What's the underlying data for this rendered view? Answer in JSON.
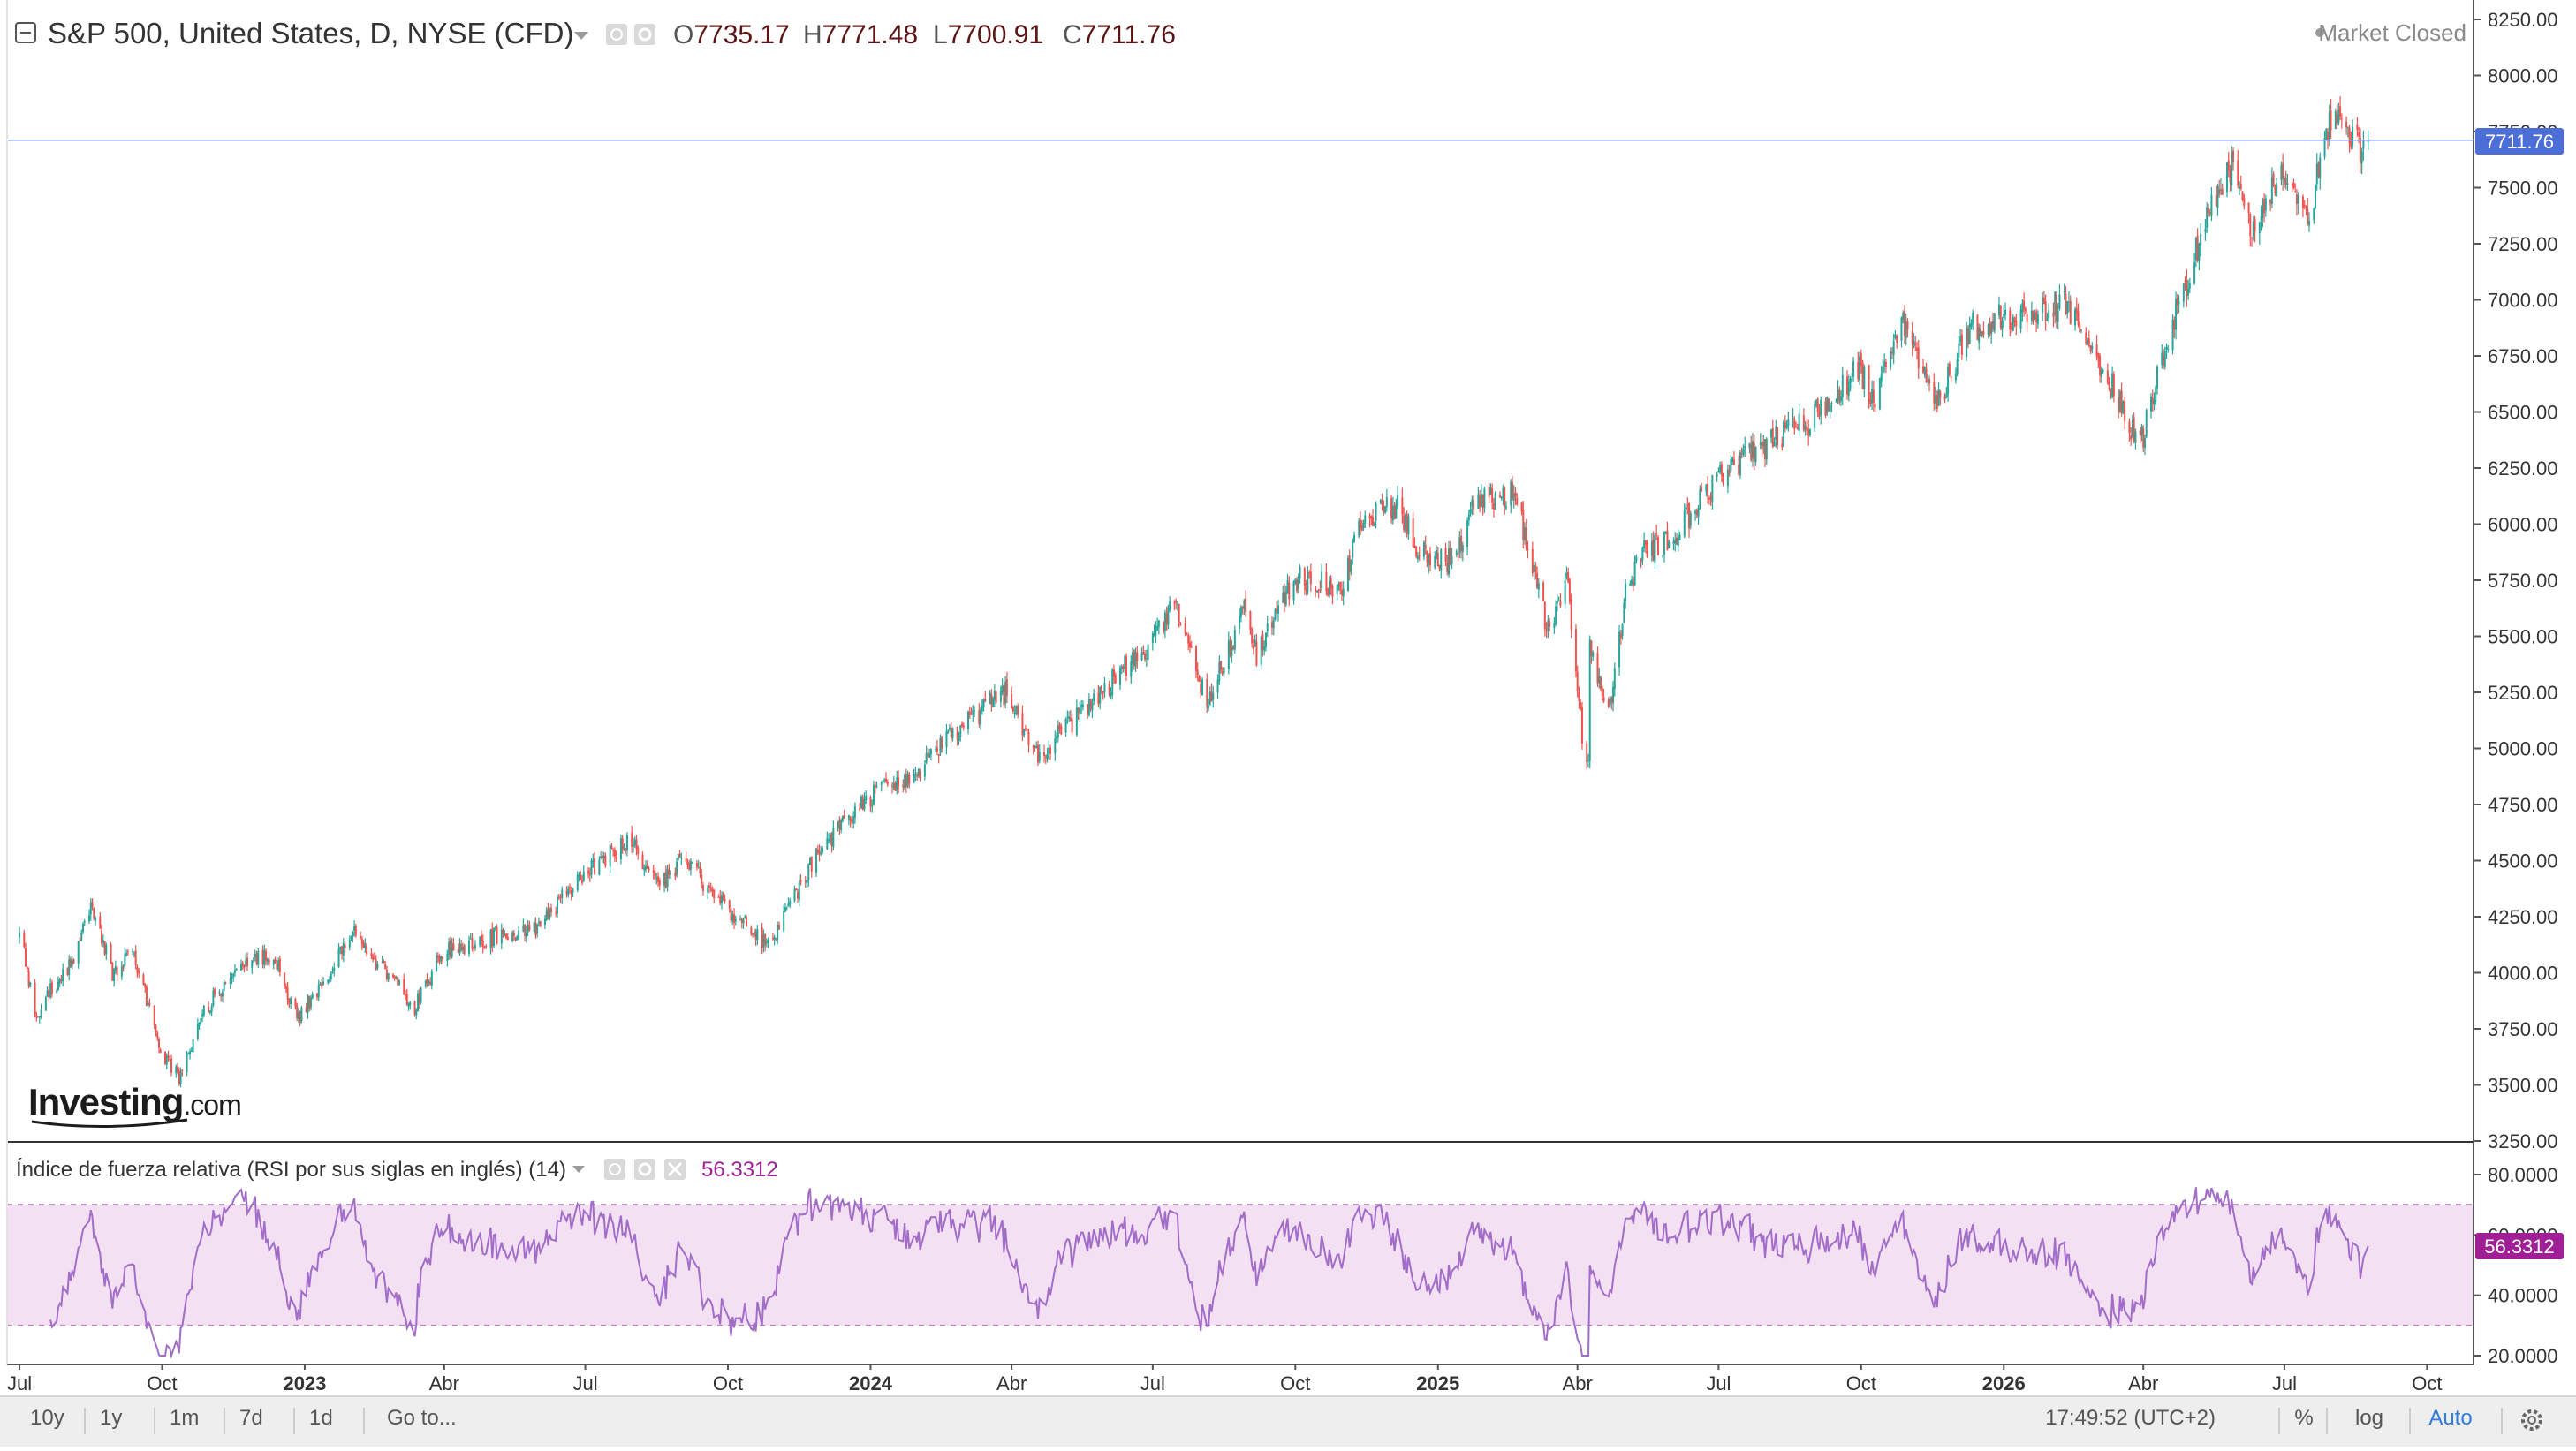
{
  "header": {
    "symbol_title": "S&P 500, United States, D, NYSE (CFD)",
    "ohlc": [
      {
        "key": "O",
        "value": "7735.17"
      },
      {
        "key": "H",
        "value": "7771.48"
      },
      {
        "key": "L",
        "value": "7700.91"
      },
      {
        "key": "C",
        "value": "7711.76"
      }
    ],
    "market_status": "Market Closed"
  },
  "watermark": {
    "brand": "Investing",
    "suffix": ".com"
  },
  "price_label": "7711.76",
  "indicator": {
    "title": "Índice de fuerza relativa (RSI por sus siglas en inglés) (14)",
    "value_label": "56.3312"
  },
  "toolbar": {
    "ranges": [
      "10y",
      "1y",
      "1m",
      "7d",
      "1d"
    ],
    "goto_label": "Go to...",
    "clock": "17:49:52 (UTC+2)",
    "percent_label": "%",
    "log_label": "log",
    "auto_label": "Auto"
  },
  "colors": {
    "up": "#26a69a",
    "down": "#ef5350",
    "rsi_line": "#a26cc9",
    "rsi_band": "#f3e1f3",
    "price_tag": "#4c6ed8",
    "rsi_tag": "#a01f96",
    "auto_active": "#2f7de0"
  },
  "chart_data": [
    {
      "type": "candlestick",
      "title": "S&P 500, United States, D, NYSE (CFD)",
      "x_axis_ticks": [
        "Jul",
        "Oct",
        "2023",
        "Abr",
        "Jul",
        "Oct",
        "2024",
        "Abr",
        "Jul",
        "Oct",
        "2025",
        "Abr",
        "Jul",
        "Oct",
        "2026",
        "Abr",
        "Jul",
        "Oct"
      ],
      "y_axis_ticks": [
        "8250.00",
        "8000.00",
        "7750.00",
        "7500.00",
        "7250.00",
        "7000.00",
        "6750.00",
        "6500.00",
        "6250.00",
        "6000.00",
        "5750.00",
        "5500.00",
        "5250.00",
        "5000.00",
        "4750.00",
        "4500.00",
        "4250.00",
        "4000.00",
        "3750.00",
        "3500.00",
        "3250.00"
      ],
      "ylim": [
        3250,
        8250
      ],
      "last_close": 7711.76,
      "series": [
        {
          "anchors": [
            [
              "2022-07-01",
              4150
            ],
            [
              "2022-07-05",
              4050
            ],
            [
              "2022-07-12",
              3780
            ],
            [
              "2022-07-22",
              3930
            ],
            [
              "2022-08-01",
              4000
            ],
            [
              "2022-08-16",
              4300
            ],
            [
              "2022-08-30",
              4000
            ],
            [
              "2022-09-12",
              4100
            ],
            [
              "2022-09-30",
              3650
            ],
            [
              "2022-10-13",
              3530
            ],
            [
              "2022-10-25",
              3800
            ],
            [
              "2022-11-10",
              3950
            ],
            [
              "2022-11-30",
              4080
            ],
            [
              "2022-12-13",
              4050
            ],
            [
              "2022-12-28",
              3800
            ],
            [
              "2023-01-12",
              3950
            ],
            [
              "2023-02-02",
              4180
            ],
            [
              "2023-02-22",
              4000
            ],
            [
              "2023-03-13",
              3850
            ],
            [
              "2023-03-31",
              4100
            ],
            [
              "2023-04-28",
              4150
            ],
            [
              "2023-05-31",
              4200
            ],
            [
              "2023-06-30",
              4450
            ],
            [
              "2023-07-31",
              4590
            ],
            [
              "2023-08-18",
              4370
            ],
            [
              "2023-09-01",
              4510
            ],
            [
              "2023-09-29",
              4300
            ],
            [
              "2023-10-27",
              4120
            ],
            [
              "2023-11-30",
              4560
            ],
            [
              "2023-12-29",
              4770
            ],
            [
              "2024-01-31",
              4900
            ],
            [
              "2024-02-29",
              5100
            ],
            [
              "2024-03-28",
              5250
            ],
            [
              "2024-04-19",
              4970
            ],
            [
              "2024-05-31",
              5270
            ],
            [
              "2024-06-28",
              5460
            ],
            [
              "2024-07-16",
              5650
            ],
            [
              "2024-08-05",
              5190
            ],
            [
              "2024-08-30",
              5640
            ],
            [
              "2024-09-06",
              5410
            ],
            [
              "2024-09-30",
              5760
            ],
            [
              "2024-10-31",
              5710
            ],
            [
              "2024-11-11",
              6000
            ],
            [
              "2024-12-06",
              6090
            ],
            [
              "2024-12-20",
              5870
            ],
            [
              "2025-01-13",
              5830
            ],
            [
              "2025-01-23",
              6100
            ],
            [
              "2025-02-19",
              6140
            ],
            [
              "2025-03-13",
              5520
            ],
            [
              "2025-03-25",
              5780
            ],
            [
              "2025-04-04",
              5070
            ],
            [
              "2025-04-08",
              4900
            ],
            [
              "2025-04-09",
              5450
            ],
            [
              "2025-04-21",
              5150
            ],
            [
              "2025-05-02",
              5690
            ],
            [
              "2025-05-13",
              5880
            ],
            [
              "2025-05-30",
              5920
            ],
            [
              "2025-06-30",
              6200
            ],
            [
              "2025-07-31",
              6350
            ],
            [
              "2025-08-29",
              6460
            ],
            [
              "2025-09-30",
              6690
            ],
            [
              "2025-10-10",
              6550
            ],
            [
              "2025-10-28",
              6890
            ],
            [
              "2025-11-20",
              6540
            ],
            [
              "2025-12-10",
              6880
            ],
            [
              "2026-01-15",
              6940
            ],
            [
              "2026-02-10",
              6980
            ],
            [
              "2026-02-26",
              6800
            ],
            [
              "2026-03-20",
              6500
            ],
            [
              "2026-03-30",
              6350
            ],
            [
              "2026-04-08",
              6600
            ],
            [
              "2026-04-15",
              6800
            ],
            [
              "2026-04-30",
              7100
            ],
            [
              "2026-05-15",
              7450
            ],
            [
              "2026-05-29",
              7620
            ],
            [
              "2026-06-10",
              7260
            ],
            [
              "2026-06-22",
              7500
            ],
            [
              "2026-07-06",
              7560
            ],
            [
              "2026-07-17",
              7340
            ],
            [
              "2026-07-27",
              7770
            ],
            [
              "2026-08-10",
              7800
            ],
            [
              "2026-08-17",
              7680
            ],
            [
              "2026-08-24",
              7711.76
            ]
          ]
        }
      ]
    },
    {
      "type": "line",
      "title": "Índice de fuerza relativa (RSI por sus siglas en inglés) (14)",
      "y_axis_ticks": [
        "80.0000",
        "60.0000",
        "40.0000",
        "20.0000"
      ],
      "ylim": [
        20,
        80
      ],
      "band": [
        30,
        70
      ],
      "last_value": 56.3312
    }
  ]
}
